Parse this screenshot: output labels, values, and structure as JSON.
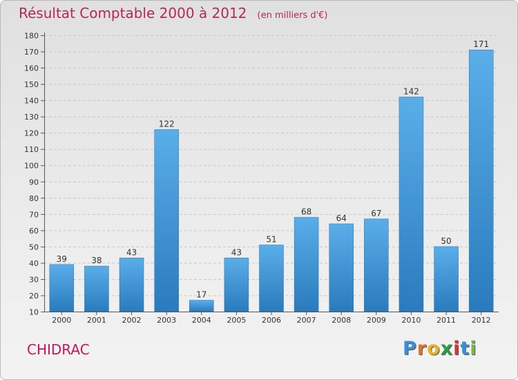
{
  "chart_data": {
    "type": "bar",
    "title": "Résultat Comptable 2000 à 2012",
    "unit_label": "(en milliers d'€)",
    "categories": [
      "2000",
      "2001",
      "2002",
      "2003",
      "2004",
      "2005",
      "2006",
      "2007",
      "2008",
      "2009",
      "2010",
      "2011",
      "2012"
    ],
    "values": [
      39,
      38,
      43,
      122,
      17,
      43,
      51,
      68,
      64,
      67,
      142,
      50,
      171
    ],
    "ylim": [
      10,
      180
    ],
    "yticks": [
      10,
      20,
      30,
      40,
      50,
      60,
      70,
      80,
      90,
      100,
      110,
      120,
      130,
      140,
      150,
      160,
      170,
      180
    ],
    "grid": true,
    "xlabel": "",
    "ylabel": "",
    "bar_color_top": "#5aaee8",
    "bar_color_bottom": "#2a7bbd"
  },
  "footer": {
    "commune": "CHIDRAC",
    "logo_letters": [
      "P",
      "r",
      "o",
      "x",
      "i",
      "t",
      "i"
    ],
    "logo_colors": [
      "#3b8fd4",
      "#e0762a",
      "#e8b22a",
      "#2f9c45",
      "#d43535",
      "#3b8fd4",
      "#7ab648"
    ]
  }
}
